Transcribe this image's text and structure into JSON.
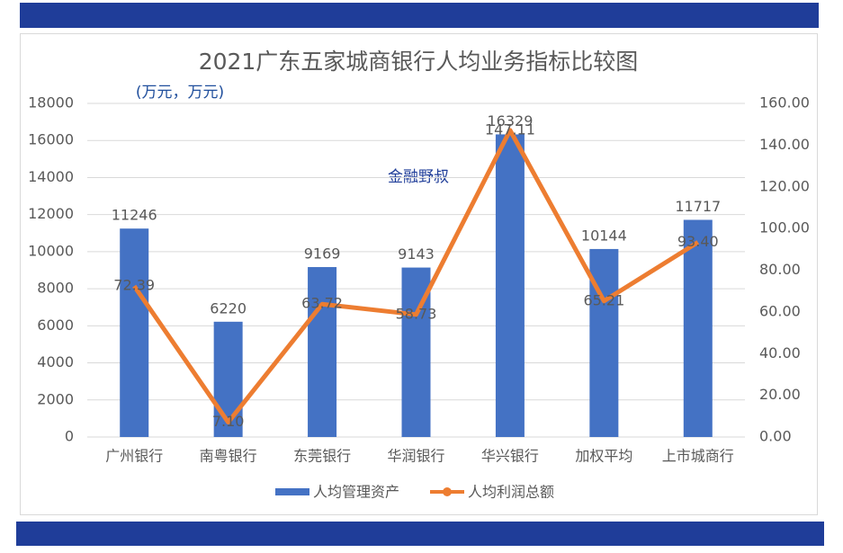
{
  "chart_data": {
    "type": "bar",
    "title": "2021广东五家城商银行人均业务指标比较图",
    "annotations": [
      "(万元，万元)",
      "金融野叔"
    ],
    "categories": [
      "广州银行",
      "南粤银行",
      "东莞银行",
      "华润银行",
      "华兴银行",
      "加权平均",
      "上市城商行"
    ],
    "series": [
      {
        "name": "人均管理资产",
        "type": "bar",
        "color": "#4472c4",
        "values": [
          11246,
          6220,
          9169,
          9143,
          16329,
          10144,
          11717
        ]
      },
      {
        "name": "人均利润总额",
        "type": "line",
        "axis": "y2",
        "color": "#ed7d31",
        "values": [
          72.39,
          7.1,
          63.72,
          58.73,
          147.11,
          65.21,
          93.4
        ],
        "value_labels": [
          "72.39",
          "7.10",
          "63.72",
          "58.73",
          "147.11",
          "65.21",
          "93.40"
        ]
      }
    ],
    "ylim": [
      0,
      18000
    ],
    "yticks": [
      0,
      2000,
      4000,
      6000,
      8000,
      10000,
      12000,
      14000,
      16000,
      18000
    ],
    "y2lim": [
      0,
      160
    ],
    "y2ticks": [
      {
        "value": 0,
        "label": "0.00"
      },
      {
        "value": 20,
        "label": "20.00"
      },
      {
        "value": 40,
        "label": "40.00"
      },
      {
        "value": 60,
        "label": "60.00"
      },
      {
        "value": 80,
        "label": "80.00"
      },
      {
        "value": 100,
        "label": "100.00"
      },
      {
        "value": 120,
        "label": "120.00"
      },
      {
        "value": 140,
        "label": "140.00"
      },
      {
        "value": 160,
        "label": "160.00"
      }
    ],
    "grid": true,
    "legend": "bottom"
  }
}
